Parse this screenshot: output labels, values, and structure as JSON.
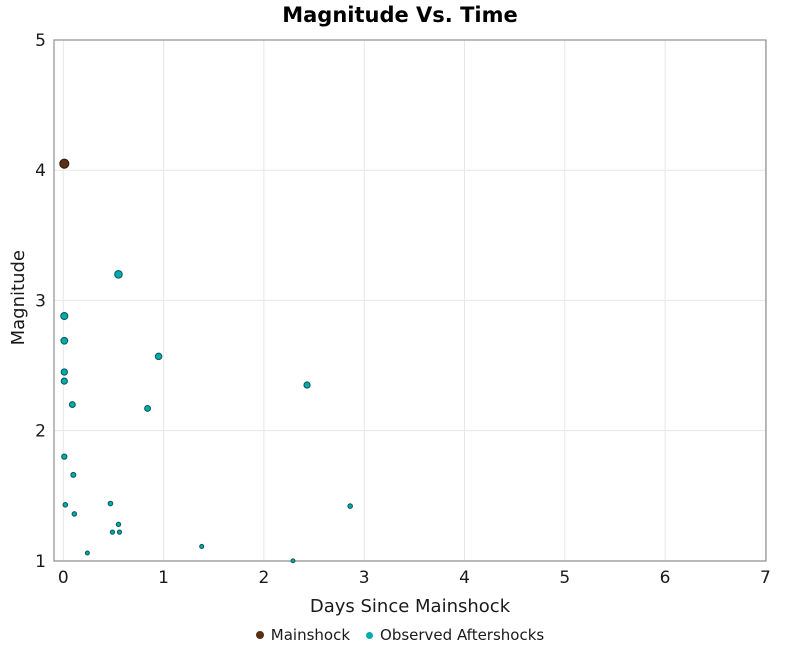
{
  "colors": {
    "background": "#FFFFFF",
    "grid": "#E7E7E7",
    "spine": "#8F8F8F",
    "tick_text": "#1A1A1A",
    "title_text": "#000000",
    "mainshock_fill": "#5A3014",
    "mainshock_edge": "#2E1A0B",
    "aftershock_fill": "#00ACAC",
    "aftershock_edge": "#0E5C5C"
  },
  "chart_data": {
    "type": "scatter",
    "title": "Magnitude Vs. Time",
    "xlabel": "Days Since Mainshock",
    "ylabel": "Magnitude",
    "xlim": [
      0,
      7
    ],
    "ylim": [
      1,
      5
    ],
    "xticks": [
      0,
      1,
      2,
      3,
      4,
      5,
      6,
      7
    ],
    "yticks": [
      1,
      2,
      3,
      4,
      5
    ],
    "grid": true,
    "legend_position": "bottom-center",
    "marker_size_scales_with_magnitude": true,
    "series": [
      {
        "name": "Mainshock",
        "color": "#5A3014",
        "edge": "#2E1A0B",
        "points": [
          {
            "x": 0.01,
            "y": 4.05
          }
        ]
      },
      {
        "name": "Observed Aftershocks",
        "color": "#00ACAC",
        "edge": "#0E5C5C",
        "points": [
          {
            "x": 0.01,
            "y": 2.88
          },
          {
            "x": 0.01,
            "y": 2.69
          },
          {
            "x": 0.01,
            "y": 2.45
          },
          {
            "x": 0.01,
            "y": 2.38
          },
          {
            "x": 0.09,
            "y": 2.2
          },
          {
            "x": 0.01,
            "y": 1.8
          },
          {
            "x": 0.1,
            "y": 1.66
          },
          {
            "x": 0.02,
            "y": 1.43
          },
          {
            "x": 0.11,
            "y": 1.36
          },
          {
            "x": 0.24,
            "y": 1.06
          },
          {
            "x": 0.47,
            "y": 1.44
          },
          {
            "x": 0.49,
            "y": 1.22
          },
          {
            "x": 0.55,
            "y": 3.2
          },
          {
            "x": 0.55,
            "y": 1.28
          },
          {
            "x": 0.56,
            "y": 1.22
          },
          {
            "x": 0.84,
            "y": 2.17
          },
          {
            "x": 0.95,
            "y": 2.57
          },
          {
            "x": 1.38,
            "y": 1.11
          },
          {
            "x": 2.29,
            "y": 1.0
          },
          {
            "x": 2.43,
            "y": 2.35
          },
          {
            "x": 2.86,
            "y": 1.42
          }
        ]
      }
    ]
  }
}
